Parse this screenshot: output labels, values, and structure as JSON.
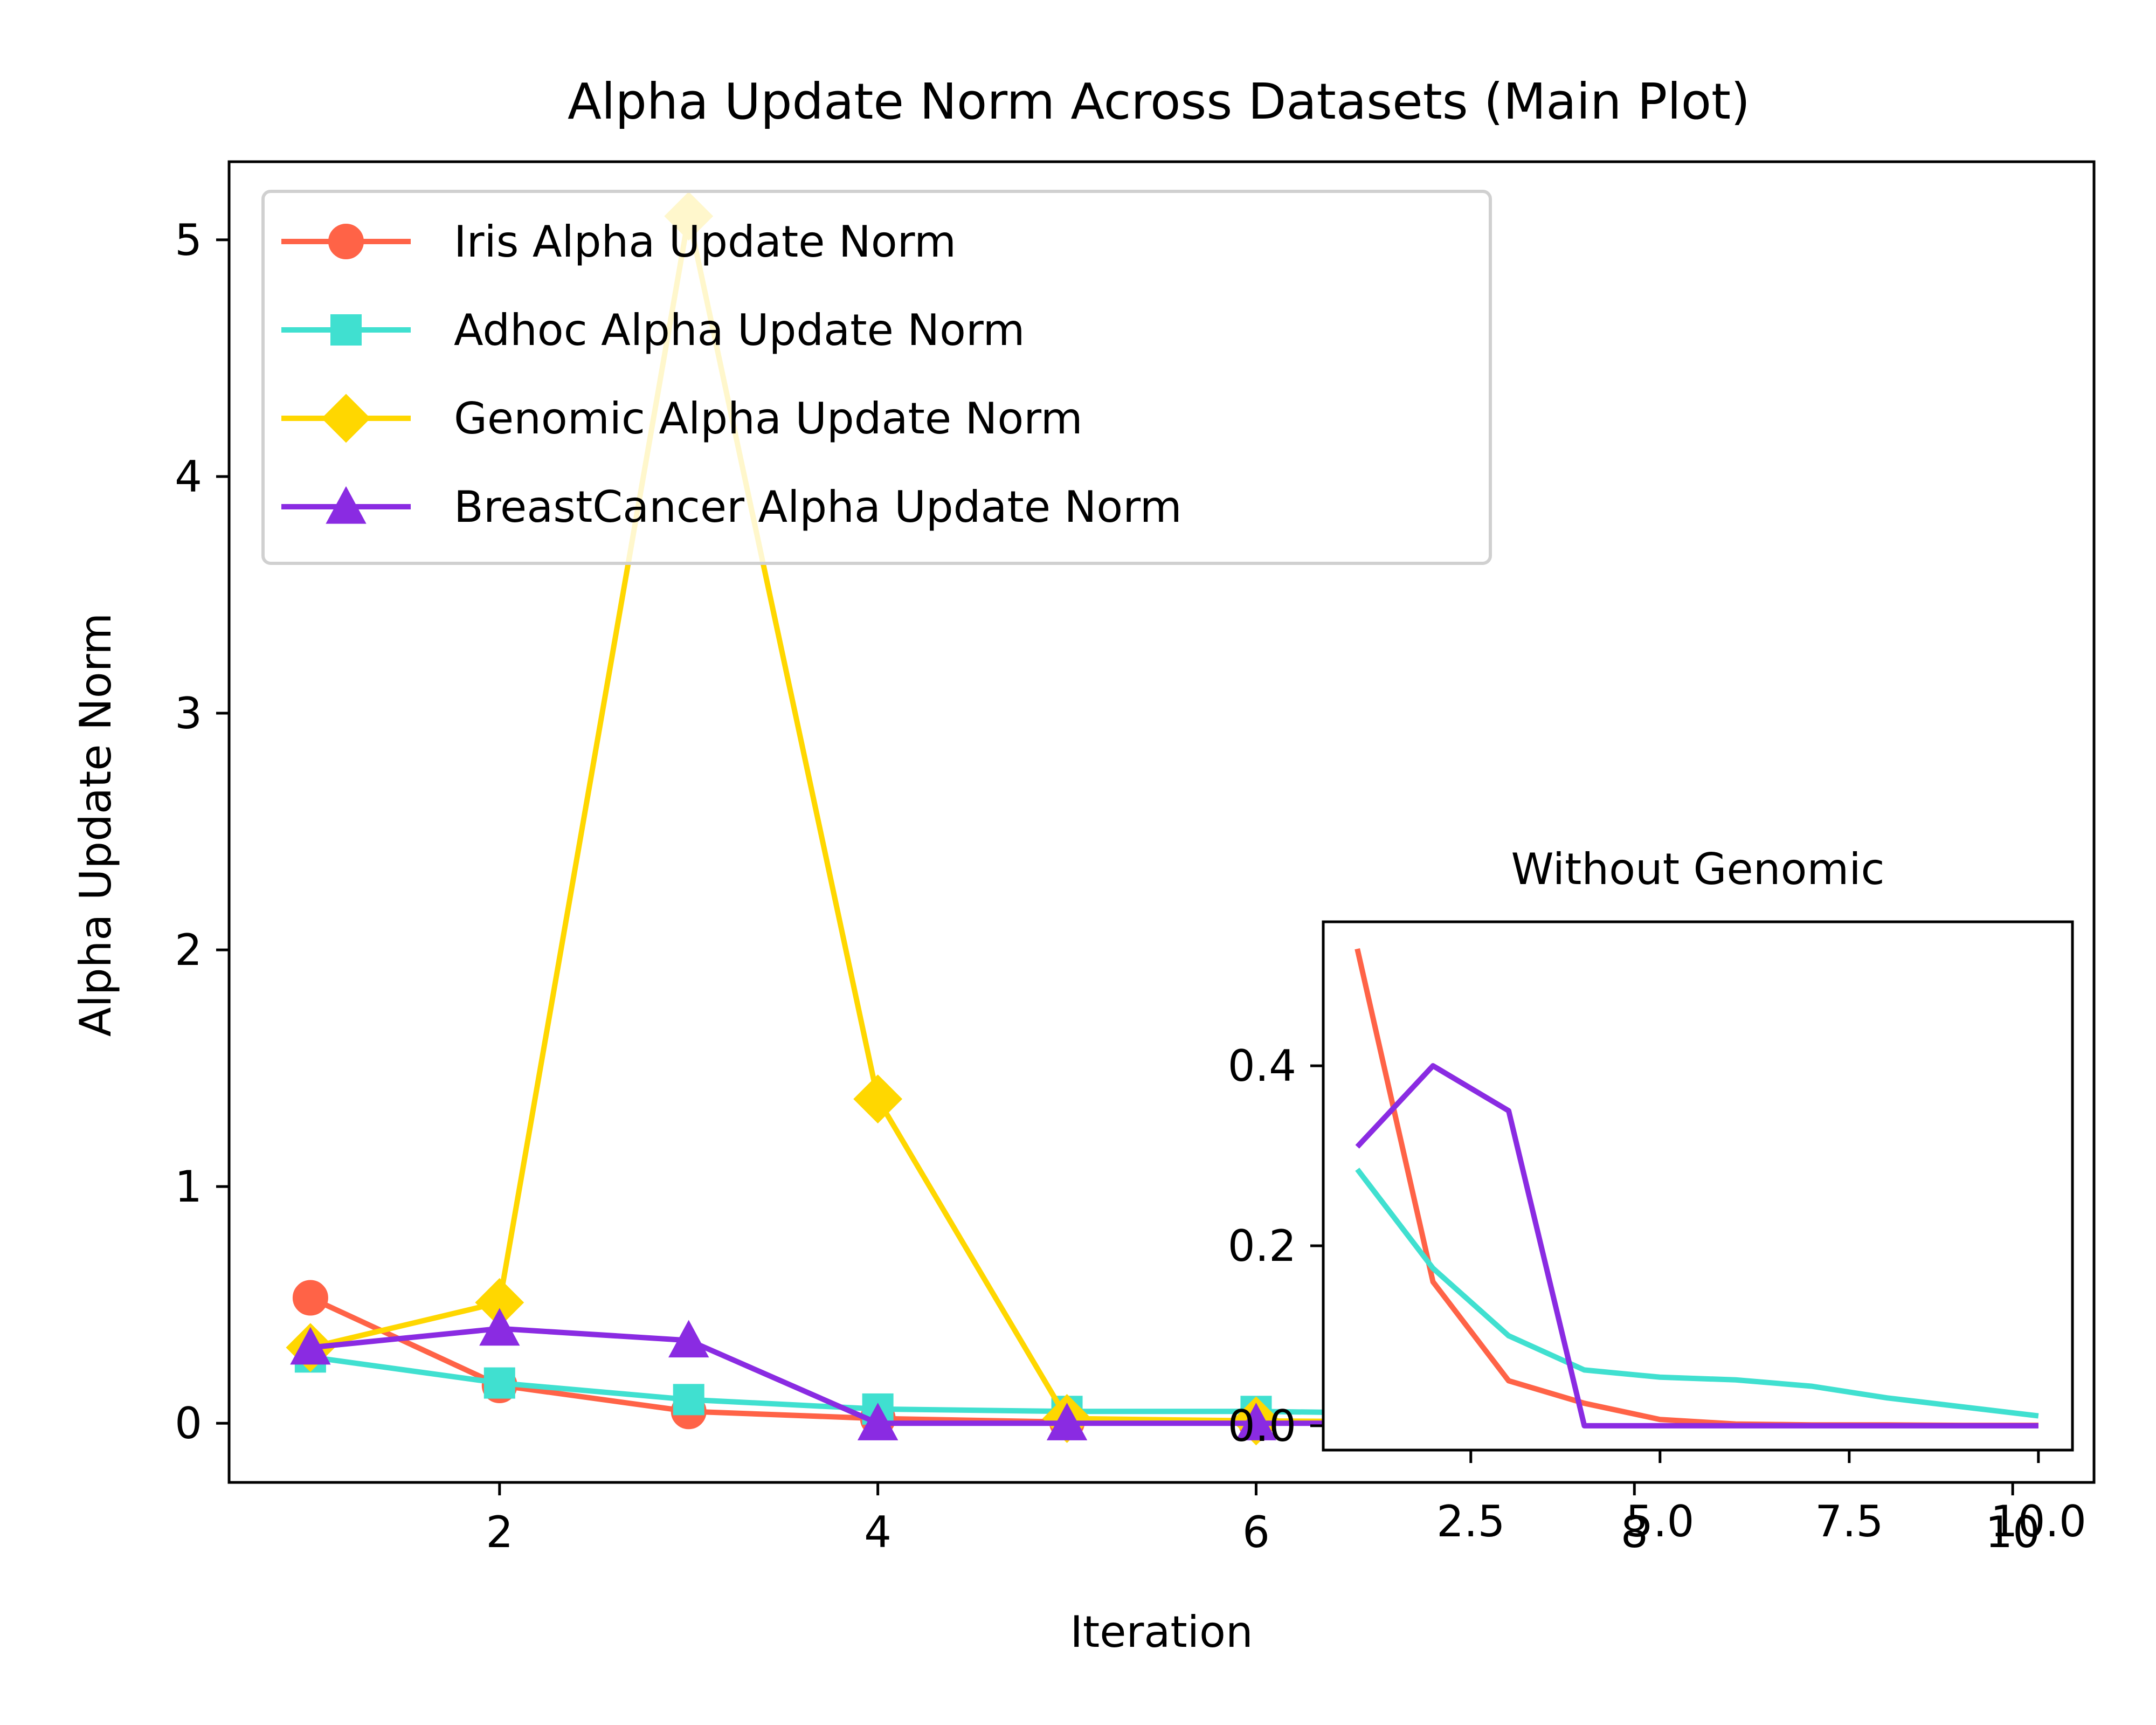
{
  "chart_data": [
    {
      "type": "line",
      "title": "Alpha Update Norm Across Datasets (Main Plot)",
      "xlabel": "Iteration",
      "ylabel": "Alpha Update Norm",
      "xlim": [
        0.57,
        10.43
      ],
      "ylim": [
        -0.25,
        5.33
      ],
      "xticks": [
        2,
        4,
        6,
        8,
        10
      ],
      "xtick_labels": [
        "2",
        "4",
        "6",
        "8",
        "10"
      ],
      "yticks": [
        0,
        1,
        2,
        3,
        4,
        5
      ],
      "ytick_labels": [
        "0",
        "1",
        "2",
        "3",
        "4",
        "5"
      ],
      "legend_position": "upper-left",
      "x": [
        1,
        2,
        3,
        4,
        5,
        6,
        7,
        8,
        9,
        10
      ],
      "series": [
        {
          "name": "Iris Alpha Update Norm",
          "color": "#FF6347",
          "marker": "circle",
          "values": [
            0.53,
            0.16,
            0.05,
            0.02,
            0.005,
            0.002,
            0.001,
            0.001,
            0.0005,
            0.0005
          ]
        },
        {
          "name": "Adhoc Alpha Update Norm",
          "color": "#40E0D0",
          "marker": "square",
          "values": [
            0.28,
            0.17,
            0.1,
            0.06,
            0.05,
            0.05,
            0.04,
            0.03,
            0.02,
            0.01
          ]
        },
        {
          "name": "Genomic Alpha Update Norm",
          "color": "#FFD700",
          "marker": "diamond",
          "values": [
            0.32,
            0.51,
            5.1,
            1.37,
            0.02,
            0.01,
            0.005,
            0.003,
            0.002,
            0.001
          ]
        },
        {
          "name": "BreastCancer Alpha Update Norm",
          "color": "#8A2BE2",
          "marker": "triangle",
          "values": [
            0.32,
            0.4,
            0.35,
            0.0,
            0.0,
            0.0,
            0.0,
            0.0,
            0.0,
            0.0
          ]
        }
      ]
    },
    {
      "type": "line",
      "title": "Without Genomic",
      "xlim": [
        0.55,
        10.45
      ],
      "ylim": [
        -0.027,
        0.56
      ],
      "xticks": [
        2.5,
        5.0,
        7.5,
        10.0
      ],
      "xtick_labels": [
        "2.5",
        "5.0",
        "7.5",
        "10.0"
      ],
      "yticks": [
        0.0,
        0.2,
        0.4
      ],
      "ytick_labels": [
        "0.0",
        "0.2",
        "0.4"
      ],
      "x": [
        1,
        2,
        3,
        4,
        5,
        6,
        7,
        8,
        9,
        10
      ],
      "series": [
        {
          "name": "Iris",
          "color": "#FF6347",
          "values": [
            0.53,
            0.16,
            0.05,
            0.025,
            0.007,
            0.002,
            0.001,
            0.001,
            0.0005,
            0.0005
          ]
        },
        {
          "name": "Adhoc",
          "color": "#40E0D0",
          "values": [
            0.285,
            0.175,
            0.1,
            0.062,
            0.054,
            0.051,
            0.044,
            0.031,
            0.021,
            0.011
          ]
        },
        {
          "name": "BreastCancer",
          "color": "#8A2BE2",
          "values": [
            0.31,
            0.4,
            0.35,
            0.0,
            0.0,
            0.0,
            0.0,
            0.0,
            0.0,
            0.0
          ]
        }
      ]
    }
  ]
}
